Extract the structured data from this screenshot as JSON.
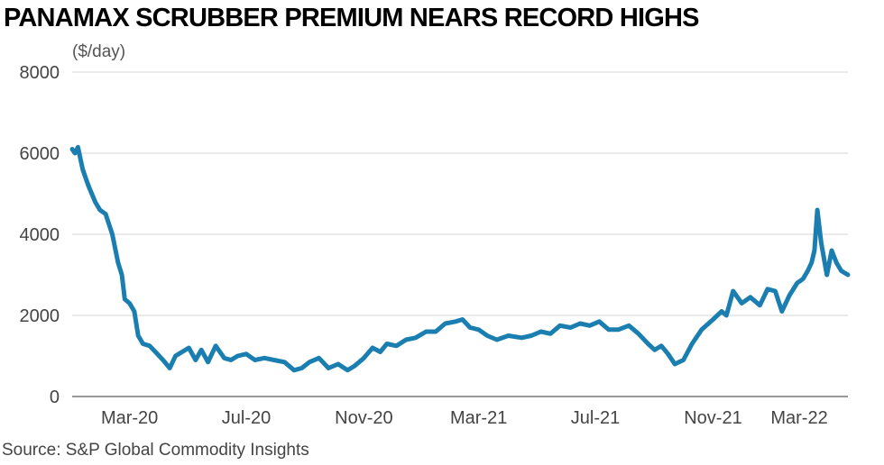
{
  "title": "PANAMAX SCRUBBER PREMIUM NEARS RECORD HIGHS",
  "unit": "($/day)",
  "source": "Source: S&P Global Commodity Insights",
  "colors": {
    "line": "#1a7fb0",
    "grid": "#d4d4d4",
    "axis": "#777777"
  },
  "chart_data": {
    "type": "line",
    "title": "PANAMAX SCRUBBER PREMIUM NEARS RECORD HIGHS",
    "ylabel": "($/day)",
    "xlabel": "",
    "ylim": [
      0,
      8000
    ],
    "xlim": [
      "2020-01-01",
      "2022-03-22"
    ],
    "grid": true,
    "y_ticks": [
      0,
      2000,
      4000,
      6000,
      8000
    ],
    "y_tick_labels": [
      "0",
      "2000",
      "4000",
      "6000",
      "8000"
    ],
    "x_ticks": [
      {
        "date": "2020-03-01",
        "label": "Mar-20"
      },
      {
        "date": "2020-07-01",
        "label": "Jul-20"
      },
      {
        "date": "2020-11-01",
        "label": "Nov-20"
      },
      {
        "date": "2021-03-01",
        "label": "Mar-21"
      },
      {
        "date": "2021-07-01",
        "label": "Jul-21"
      },
      {
        "date": "2021-11-01",
        "label": "Nov-21"
      },
      {
        "date": "2022-03-01",
        "label": "Mar-22"
      }
    ],
    "series": [
      {
        "x": [
          "2020-01-01",
          "2020-01-04",
          "2020-01-07",
          "2020-01-12",
          "2020-01-15",
          "2020-01-18",
          "2020-01-25",
          "2020-01-30",
          "2020-02-05",
          "2020-02-12",
          "2020-02-18",
          "2020-02-22",
          "2020-02-25",
          "2020-03-01",
          "2020-03-06",
          "2020-03-10",
          "2020-03-15",
          "2020-03-22",
          "2020-03-28",
          "2020-04-05",
          "2020-04-12",
          "2020-04-18",
          "2020-04-25",
          "2020-05-02",
          "2020-05-09",
          "2020-05-15",
          "2020-05-22",
          "2020-05-30",
          "2020-06-08",
          "2020-06-15",
          "2020-06-22",
          "2020-07-01",
          "2020-07-10",
          "2020-07-20",
          "2020-07-30",
          "2020-08-10",
          "2020-08-20",
          "2020-08-28",
          "2020-09-05",
          "2020-09-15",
          "2020-09-25",
          "2020-10-05",
          "2020-10-15",
          "2020-10-22",
          "2020-11-01",
          "2020-11-10",
          "2020-11-18",
          "2020-11-25",
          "2020-12-05",
          "2020-12-15",
          "2020-12-25",
          "2021-01-05",
          "2021-01-15",
          "2021-01-25",
          "2021-02-05",
          "2021-02-12",
          "2021-02-20",
          "2021-03-01",
          "2021-03-10",
          "2021-03-20",
          "2021-04-01",
          "2021-04-15",
          "2021-04-25",
          "2021-05-05",
          "2021-05-15",
          "2021-05-25",
          "2021-06-05",
          "2021-06-15",
          "2021-06-25",
          "2021-07-05",
          "2021-07-15",
          "2021-07-25",
          "2021-08-05",
          "2021-08-15",
          "2021-08-25",
          "2021-09-01",
          "2021-09-08",
          "2021-09-15",
          "2021-09-22",
          "2021-10-01",
          "2021-10-10",
          "2021-10-20",
          "2021-11-01",
          "2021-11-10",
          "2021-11-15",
          "2021-11-22",
          "2021-12-01",
          "2021-12-10",
          "2021-12-20",
          "2021-12-28",
          "2022-01-05",
          "2022-01-12",
          "2022-01-20",
          "2022-01-28",
          "2022-02-03",
          "2022-02-08",
          "2022-02-12",
          "2022-02-15",
          "2022-02-18",
          "2022-02-22",
          "2022-02-25",
          "2022-02-28",
          "2022-03-05",
          "2022-03-10",
          "2022-03-15",
          "2022-03-22"
        ],
        "y": [
          6100,
          6000,
          6150,
          5600,
          5400,
          5200,
          4800,
          4600,
          4500,
          4000,
          3300,
          3000,
          2400,
          2300,
          2100,
          1500,
          1300,
          1250,
          1100,
          900,
          700,
          1000,
          1100,
          1200,
          900,
          1150,
          850,
          1250,
          950,
          900,
          1000,
          1050,
          900,
          950,
          900,
          850,
          650,
          700,
          850,
          950,
          700,
          800,
          650,
          750,
          950,
          1200,
          1100,
          1300,
          1250,
          1400,
          1450,
          1600,
          1600,
          1800,
          1850,
          1900,
          1700,
          1650,
          1500,
          1400,
          1500,
          1450,
          1500,
          1600,
          1550,
          1750,
          1700,
          1800,
          1750,
          1850,
          1650,
          1650,
          1750,
          1550,
          1300,
          1150,
          1250,
          1050,
          800,
          900,
          1300,
          1650,
          1900,
          2100,
          2000,
          2600,
          2300,
          2450,
          2250,
          2650,
          2600,
          2100,
          2500,
          2800,
          2900,
          3100,
          3300,
          3600,
          4600,
          3800,
          3400,
          3000,
          3600,
          3300,
          3100,
          3000
        ]
      }
    ]
  }
}
